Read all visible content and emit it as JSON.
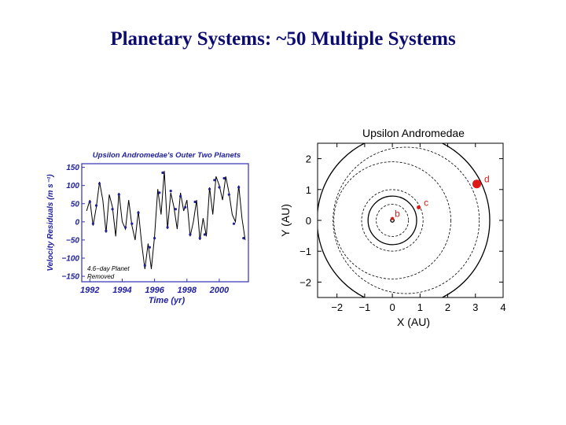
{
  "slide": {
    "title": "Planetary Systems: ~50 Multiple Systems"
  },
  "chart_data": [
    {
      "type": "line",
      "title": "Upsilon Andromedae's Outer Two Planets",
      "xlabel": "Time (yr)",
      "ylabel": "Velocity Residuals (m s⁻¹)",
      "xlim": [
        1991.5,
        2001.8
      ],
      "ylim": [
        -165,
        160
      ],
      "x_ticks": [
        1992,
        1994,
        1996,
        1998,
        2000
      ],
      "x_tick_labels": [
        "1992",
        "1994",
        "1996",
        "1998",
        "2000"
      ],
      "y_ticks": [
        150,
        100,
        50,
        0,
        -50,
        -100,
        -150
      ],
      "y_tick_labels": [
        "150",
        "100",
        "50",
        "0",
        "−50",
        "−100",
        "−150"
      ],
      "annotation_lines": [
        "4.6−day Planet",
        "Removed"
      ],
      "colors": {
        "text": "#2020a0",
        "frame": "#3030b0",
        "model_curve": "#000000",
        "data_points": "#20209a"
      },
      "series": [
        {
          "kind": "model",
          "x": [
            1991.8,
            1992.0,
            1992.2,
            1992.4,
            1992.6,
            1992.8,
            1993.0,
            1993.2,
            1993.4,
            1993.6,
            1993.8,
            1994.0,
            1994.2,
            1994.4,
            1994.6,
            1994.8,
            1995.0,
            1995.2,
            1995.4,
            1995.6,
            1995.8,
            1996.0,
            1996.2,
            1996.4,
            1996.6,
            1996.8,
            1997.0,
            1997.2,
            1997.4,
            1997.6,
            1997.8,
            1998.0,
            1998.2,
            1998.4,
            1998.6,
            1998.8,
            1999.0,
            1999.2,
            1999.4,
            1999.6,
            1999.8,
            2000.0,
            2000.2,
            2000.4,
            2000.6,
            2000.8,
            2001.0,
            2001.2,
            2001.4,
            2001.6
          ],
          "y": [
            30,
            60,
            -10,
            40,
            110,
            60,
            -30,
            75,
            40,
            -40,
            80,
            0,
            -20,
            60,
            -10,
            -50,
            30,
            -60,
            -130,
            -60,
            -130,
            -40,
            90,
            20,
            140,
            -20,
            80,
            40,
            -20,
            80,
            30,
            60,
            -40,
            0,
            60,
            -50,
            10,
            -40,
            95,
            20,
            125,
            100,
            60,
            125,
            80,
            20,
            0,
            100,
            10,
            -50
          ]
        },
        {
          "kind": "data",
          "x": [
            1992.0,
            1992.2,
            1992.4,
            1992.6,
            1993.0,
            1993.4,
            1993.8,
            1994.2,
            1994.6,
            1995.0,
            1995.4,
            1995.7,
            1996.0,
            1996.3,
            1996.5,
            1996.8,
            1997.0,
            1997.3,
            1997.6,
            1997.9,
            1998.2,
            1998.5,
            1998.8,
            1999.1,
            1999.4,
            1999.7,
            2000.0,
            2000.3,
            2000.6,
            2000.9,
            2001.2,
            2001.5
          ],
          "y": [
            55,
            -5,
            45,
            105,
            -25,
            35,
            75,
            -15,
            -5,
            25,
            -120,
            -70,
            -45,
            80,
            135,
            -15,
            85,
            35,
            70,
            40,
            -35,
            55,
            -45,
            -35,
            90,
            115,
            95,
            120,
            75,
            -5,
            95,
            -45
          ]
        }
      ]
    },
    {
      "type": "scatter",
      "title": "Upsilon Andromedae",
      "xlabel": "X (AU)",
      "ylabel": "Y (AU)",
      "xlim": [
        -2.7,
        4.0
      ],
      "ylim": [
        -2.5,
        2.5
      ],
      "x_ticks": [
        -2,
        -1,
        0,
        1,
        2,
        3,
        4
      ],
      "x_tick_labels": [
        "−2",
        "−1",
        "0",
        "1",
        "2",
        "3",
        "4"
      ],
      "y_ticks": [
        2,
        1,
        0,
        -1,
        -2
      ],
      "y_tick_labels": [
        "2",
        "1",
        "0",
        "−1",
        "−2"
      ],
      "colors": {
        "planet": "#e01818",
        "orbit": "#000000",
        "text": "#000000"
      },
      "orbits": [
        {
          "center": [
            0.0,
            0.0
          ],
          "radius": 0.06,
          "style": "solid"
        },
        {
          "center": [
            0.0,
            0.0
          ],
          "radius": 0.55,
          "style": "dashed"
        },
        {
          "center": [
            0.0,
            0.0
          ],
          "radius": 0.83,
          "style": "solid"
        },
        {
          "center": [
            0.0,
            0.0
          ],
          "radius": 1.05,
          "style": "dashed"
        },
        {
          "center": [
            0.0,
            0.0
          ],
          "radius": 2.0,
          "style": "dashed"
        },
        {
          "center": [
            0.5,
            0.0
          ],
          "radius": 2.5,
          "style": "dashed"
        },
        {
          "center": [
            0.4,
            0.0
          ],
          "radius": 2.95,
          "style": "solid"
        }
      ],
      "planets": [
        {
          "name": "b",
          "x": 0.0,
          "y": 0.06
        },
        {
          "name": "c",
          "x": 0.95,
          "y": 0.42
        },
        {
          "name": "d",
          "x": 3.05,
          "y": 1.18
        }
      ]
    }
  ]
}
